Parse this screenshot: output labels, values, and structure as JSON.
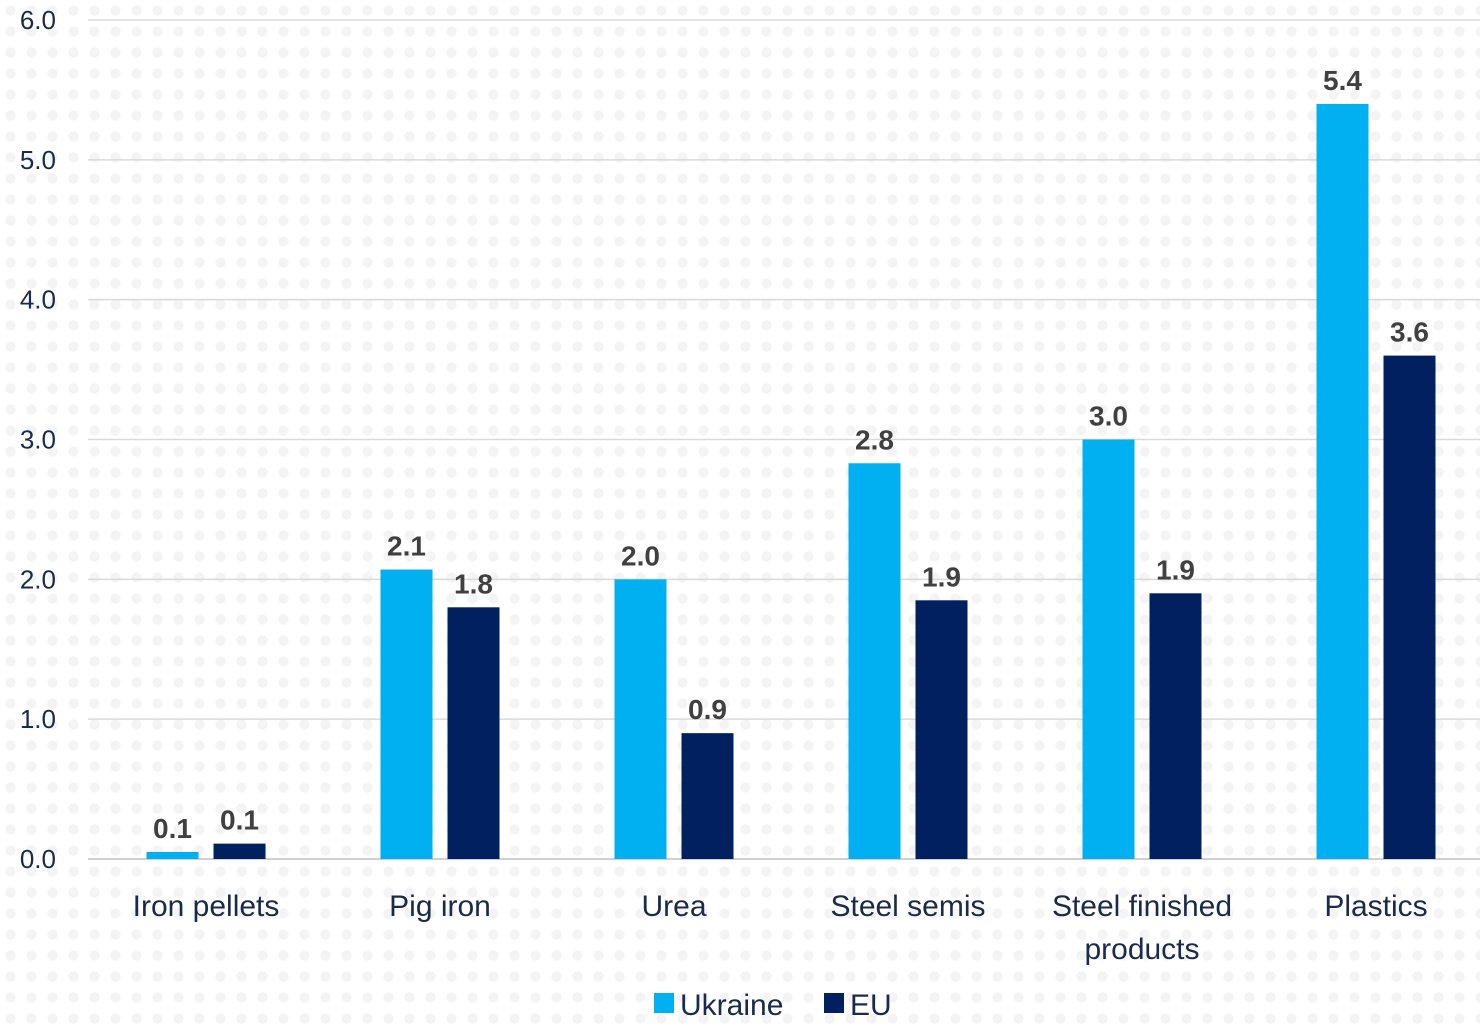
{
  "chart_data": {
    "type": "bar",
    "title": "",
    "xlabel": "",
    "ylabel": "",
    "categories": [
      [
        "Iron pellets"
      ],
      [
        "Pig iron"
      ],
      [
        "Urea"
      ],
      [
        "Steel semis"
      ],
      [
        "Steel finished",
        "products"
      ],
      [
        "Plastics"
      ]
    ],
    "series": [
      {
        "name": "Ukraine",
        "color": "#00b0f0",
        "values": [
          0.05,
          2.07,
          2.0,
          2.83,
          3.0,
          5.4
        ],
        "labels": [
          "0.1",
          "2.1",
          "2.0",
          "2.8",
          "3.0",
          "5.4"
        ]
      },
      {
        "name": "EU",
        "color": "#002060",
        "values": [
          0.11,
          1.8,
          0.9,
          1.85,
          1.9,
          3.6
        ],
        "labels": [
          "0.1",
          "1.8",
          "0.9",
          "1.9",
          "1.9",
          "3.6"
        ]
      }
    ],
    "ylim": [
      0,
      6
    ],
    "yticks": [
      "0.0",
      "1.0",
      "2.0",
      "3.0",
      "4.0",
      "5.0",
      "6.0"
    ],
    "grid": true,
    "legend_position": "bottom-center",
    "background_pattern": "dots"
  }
}
